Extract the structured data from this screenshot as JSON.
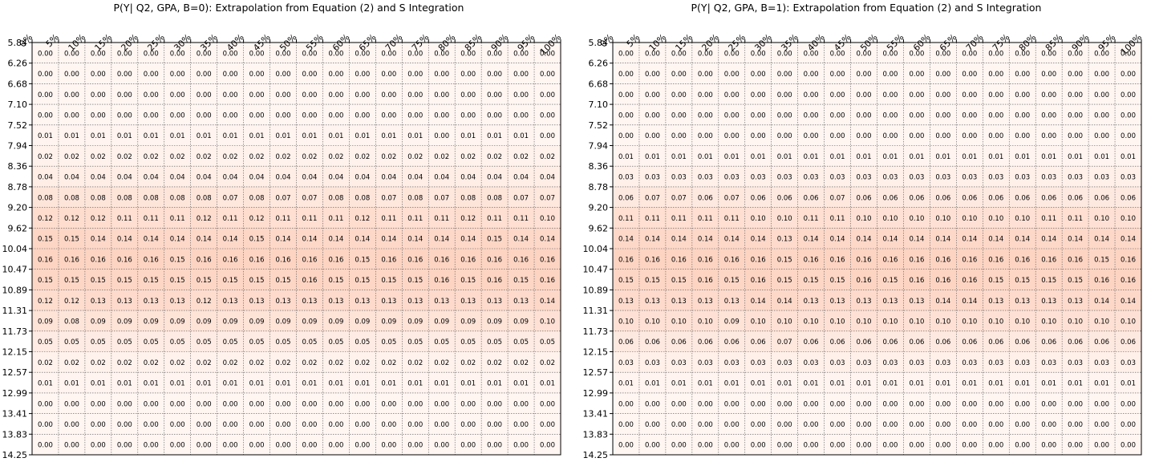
{
  "chart_data": [
    {
      "type": "heatmap",
      "title": "P(Y| Q2, GPA, B=0): Extrapolation from Equation (2) and S Integration",
      "x_labels": [
        "0%",
        "5%",
        "10%",
        "15%",
        "20%",
        "25%",
        "30%",
        "35%",
        "40%",
        "45%",
        "50%",
        "55%",
        "60%",
        "65%",
        "70%",
        "75%",
        "80%",
        "85%",
        "90%",
        "95%",
        "100%"
      ],
      "y_labels": [
        "5.84",
        "6.26",
        "6.68",
        "7.10",
        "7.52",
        "7.94",
        "8.36",
        "8.78",
        "9.20",
        "9.62",
        "10.04",
        "10.47",
        "10.89",
        "11.31",
        "11.73",
        "12.15",
        "12.57",
        "12.99",
        "13.41",
        "13.83",
        "14.25"
      ],
      "grid": true,
      "colormap": "white-to-salmon",
      "values": [
        [
          "0.00",
          "0.00",
          "0.00",
          "0.00",
          "0.00",
          "0.00",
          "0.00",
          "0.00",
          "0.00",
          "0.00",
          "0.00",
          "0.00",
          "0.00",
          "0.00",
          "0.00",
          "0.00",
          "0.00",
          "0.00",
          "0.00",
          "0.00"
        ],
        [
          "0.00",
          "0.00",
          "0.00",
          "0.00",
          "0.00",
          "0.00",
          "0.00",
          "0.00",
          "0.00",
          "0.00",
          "0.00",
          "0.00",
          "0.00",
          "0.00",
          "0.00",
          "0.00",
          "0.00",
          "0.00",
          "0.00",
          "0.00"
        ],
        [
          "0.00",
          "0.00",
          "0.00",
          "0.00",
          "0.00",
          "0.00",
          "0.00",
          "0.00",
          "0.00",
          "0.00",
          "0.00",
          "0.00",
          "0.00",
          "0.00",
          "0.00",
          "0.00",
          "0.00",
          "0.00",
          "0.00",
          "0.00"
        ],
        [
          "0.00",
          "0.00",
          "0.00",
          "0.00",
          "0.00",
          "0.00",
          "0.00",
          "0.00",
          "0.00",
          "0.00",
          "0.00",
          "0.00",
          "0.00",
          "0.00",
          "0.00",
          "0.00",
          "0.00",
          "0.00",
          "0.00",
          "0.00"
        ],
        [
          "0.01",
          "0.01",
          "0.01",
          "0.01",
          "0.01",
          "0.01",
          "0.01",
          "0.01",
          "0.01",
          "0.01",
          "0.01",
          "0.01",
          "0.01",
          "0.01",
          "0.01",
          "0.00",
          "0.01",
          "0.01",
          "0.01",
          "0.00"
        ],
        [
          "0.02",
          "0.02",
          "0.02",
          "0.02",
          "0.02",
          "0.02",
          "0.02",
          "0.02",
          "0.02",
          "0.02",
          "0.02",
          "0.02",
          "0.02",
          "0.02",
          "0.02",
          "0.02",
          "0.02",
          "0.02",
          "0.02",
          "0.02"
        ],
        [
          "0.04",
          "0.04",
          "0.04",
          "0.04",
          "0.04",
          "0.04",
          "0.04",
          "0.04",
          "0.04",
          "0.04",
          "0.04",
          "0.04",
          "0.04",
          "0.04",
          "0.04",
          "0.04",
          "0.04",
          "0.04",
          "0.04",
          "0.04"
        ],
        [
          "0.08",
          "0.08",
          "0.08",
          "0.08",
          "0.08",
          "0.08",
          "0.08",
          "0.07",
          "0.08",
          "0.07",
          "0.07",
          "0.08",
          "0.08",
          "0.07",
          "0.08",
          "0.07",
          "0.08",
          "0.08",
          "0.07",
          "0.07"
        ],
        [
          "0.12",
          "0.12",
          "0.12",
          "0.11",
          "0.11",
          "0.11",
          "0.12",
          "0.11",
          "0.12",
          "0.11",
          "0.11",
          "0.11",
          "0.12",
          "0.11",
          "0.11",
          "0.11",
          "0.12",
          "0.11",
          "0.11",
          "0.10"
        ],
        [
          "0.15",
          "0.15",
          "0.14",
          "0.14",
          "0.14",
          "0.14",
          "0.14",
          "0.14",
          "0.15",
          "0.14",
          "0.14",
          "0.14",
          "0.14",
          "0.14",
          "0.14",
          "0.14",
          "0.14",
          "0.15",
          "0.14",
          "0.14"
        ],
        [
          "0.16",
          "0.16",
          "0.16",
          "0.16",
          "0.16",
          "0.15",
          "0.16",
          "0.16",
          "0.16",
          "0.16",
          "0.16",
          "0.16",
          "0.15",
          "0.16",
          "0.16",
          "0.16",
          "0.16",
          "0.16",
          "0.16",
          "0.16"
        ],
        [
          "0.15",
          "0.15",
          "0.15",
          "0.15",
          "0.15",
          "0.15",
          "0.15",
          "0.15",
          "0.15",
          "0.15",
          "0.16",
          "0.15",
          "0.15",
          "0.15",
          "0.15",
          "0.16",
          "0.15",
          "0.16",
          "0.15",
          "0.16"
        ],
        [
          "0.12",
          "0.12",
          "0.13",
          "0.13",
          "0.13",
          "0.13",
          "0.12",
          "0.13",
          "0.13",
          "0.13",
          "0.13",
          "0.13",
          "0.13",
          "0.13",
          "0.13",
          "0.13",
          "0.13",
          "0.13",
          "0.13",
          "0.14"
        ],
        [
          "0.09",
          "0.08",
          "0.09",
          "0.09",
          "0.09",
          "0.09",
          "0.09",
          "0.09",
          "0.09",
          "0.09",
          "0.09",
          "0.09",
          "0.09",
          "0.09",
          "0.09",
          "0.09",
          "0.09",
          "0.09",
          "0.09",
          "0.10"
        ],
        [
          "0.05",
          "0.05",
          "0.05",
          "0.05",
          "0.05",
          "0.05",
          "0.05",
          "0.05",
          "0.05",
          "0.05",
          "0.05",
          "0.05",
          "0.05",
          "0.05",
          "0.05",
          "0.05",
          "0.05",
          "0.05",
          "0.05",
          "0.05"
        ],
        [
          "0.02",
          "0.02",
          "0.02",
          "0.02",
          "0.02",
          "0.02",
          "0.02",
          "0.02",
          "0.02",
          "0.02",
          "0.02",
          "0.02",
          "0.02",
          "0.02",
          "0.02",
          "0.02",
          "0.02",
          "0.02",
          "0.02",
          "0.02"
        ],
        [
          "0.01",
          "0.01",
          "0.01",
          "0.01",
          "0.01",
          "0.01",
          "0.01",
          "0.01",
          "0.01",
          "0.01",
          "0.01",
          "0.01",
          "0.01",
          "0.01",
          "0.01",
          "0.01",
          "0.01",
          "0.01",
          "0.01",
          "0.01"
        ],
        [
          "0.00",
          "0.00",
          "0.00",
          "0.00",
          "0.00",
          "0.00",
          "0.00",
          "0.00",
          "0.00",
          "0.00",
          "0.00",
          "0.00",
          "0.00",
          "0.00",
          "0.00",
          "0.00",
          "0.00",
          "0.00",
          "0.00",
          "0.00"
        ],
        [
          "0.00",
          "0.00",
          "0.00",
          "0.00",
          "0.00",
          "0.00",
          "0.00",
          "0.00",
          "0.00",
          "0.00",
          "0.00",
          "0.00",
          "0.00",
          "0.00",
          "0.00",
          "0.00",
          "0.00",
          "0.00",
          "0.00",
          "0.00"
        ],
        [
          "0.00",
          "0.00",
          "0.00",
          "0.00",
          "0.00",
          "0.00",
          "0.00",
          "0.00",
          "0.00",
          "0.00",
          "0.00",
          "0.00",
          "0.00",
          "0.00",
          "0.00",
          "0.00",
          "0.00",
          "0.00",
          "0.00",
          "0.00"
        ]
      ]
    },
    {
      "type": "heatmap",
      "title": "P(Y| Q2, GPA, B=1): Extrapolation from Equation (2) and S Integration",
      "x_labels": [
        "0%",
        "5%",
        "10%",
        "15%",
        "20%",
        "25%",
        "30%",
        "35%",
        "40%",
        "45%",
        "50%",
        "55%",
        "60%",
        "65%",
        "70%",
        "75%",
        "80%",
        "85%",
        "90%",
        "95%",
        "100%"
      ],
      "y_labels": [
        "5.84",
        "6.26",
        "6.68",
        "7.10",
        "7.52",
        "7.94",
        "8.36",
        "8.78",
        "9.20",
        "9.62",
        "10.04",
        "10.47",
        "10.89",
        "11.31",
        "11.73",
        "12.15",
        "12.57",
        "12.99",
        "13.41",
        "13.83",
        "14.25"
      ],
      "grid": true,
      "colormap": "white-to-salmon",
      "values": [
        [
          "0.00",
          "0.00",
          "0.00",
          "0.00",
          "0.00",
          "0.00",
          "0.00",
          "0.00",
          "0.00",
          "0.00",
          "0.00",
          "0.00",
          "0.00",
          "0.00",
          "0.00",
          "0.00",
          "0.00",
          "0.00",
          "0.00",
          "0.00"
        ],
        [
          "0.00",
          "0.00",
          "0.00",
          "0.00",
          "0.00",
          "0.00",
          "0.00",
          "0.00",
          "0.00",
          "0.00",
          "0.00",
          "0.00",
          "0.00",
          "0.00",
          "0.00",
          "0.00",
          "0.00",
          "0.00",
          "0.00",
          "0.00"
        ],
        [
          "0.00",
          "0.00",
          "0.00",
          "0.00",
          "0.00",
          "0.00",
          "0.00",
          "0.00",
          "0.00",
          "0.00",
          "0.00",
          "0.00",
          "0.00",
          "0.00",
          "0.00",
          "0.00",
          "0.00",
          "0.00",
          "0.00",
          "0.00"
        ],
        [
          "0.00",
          "0.00",
          "0.00",
          "0.00",
          "0.00",
          "0.00",
          "0.00",
          "0.00",
          "0.00",
          "0.00",
          "0.00",
          "0.00",
          "0.00",
          "0.00",
          "0.00",
          "0.00",
          "0.00",
          "0.00",
          "0.00",
          "0.00"
        ],
        [
          "0.00",
          "0.00",
          "0.00",
          "0.00",
          "0.00",
          "0.00",
          "0.00",
          "0.00",
          "0.00",
          "0.00",
          "0.00",
          "0.00",
          "0.00",
          "0.00",
          "0.00",
          "0.00",
          "0.00",
          "0.00",
          "0.00",
          "0.00"
        ],
        [
          "0.01",
          "0.01",
          "0.01",
          "0.01",
          "0.01",
          "0.01",
          "0.01",
          "0.01",
          "0.01",
          "0.01",
          "0.01",
          "0.01",
          "0.01",
          "0.01",
          "0.01",
          "0.01",
          "0.01",
          "0.01",
          "0.01",
          "0.01"
        ],
        [
          "0.03",
          "0.03",
          "0.03",
          "0.03",
          "0.03",
          "0.03",
          "0.03",
          "0.03",
          "0.03",
          "0.03",
          "0.03",
          "0.03",
          "0.03",
          "0.03",
          "0.03",
          "0.03",
          "0.03",
          "0.03",
          "0.03",
          "0.03"
        ],
        [
          "0.06",
          "0.07",
          "0.07",
          "0.06",
          "0.07",
          "0.06",
          "0.06",
          "0.06",
          "0.07",
          "0.06",
          "0.06",
          "0.06",
          "0.06",
          "0.06",
          "0.06",
          "0.06",
          "0.06",
          "0.06",
          "0.06",
          "0.06"
        ],
        [
          "0.11",
          "0.11",
          "0.11",
          "0.11",
          "0.11",
          "0.10",
          "0.10",
          "0.11",
          "0.11",
          "0.10",
          "0.10",
          "0.10",
          "0.10",
          "0.10",
          "0.10",
          "0.10",
          "0.11",
          "0.11",
          "0.10",
          "0.10"
        ],
        [
          "0.14",
          "0.14",
          "0.14",
          "0.14",
          "0.14",
          "0.14",
          "0.13",
          "0.14",
          "0.14",
          "0.14",
          "0.14",
          "0.14",
          "0.14",
          "0.14",
          "0.14",
          "0.14",
          "0.14",
          "0.14",
          "0.14",
          "0.14"
        ],
        [
          "0.16",
          "0.16",
          "0.16",
          "0.16",
          "0.16",
          "0.16",
          "0.15",
          "0.16",
          "0.16",
          "0.16",
          "0.16",
          "0.16",
          "0.16",
          "0.16",
          "0.16",
          "0.16",
          "0.16",
          "0.16",
          "0.15",
          "0.16"
        ],
        [
          "0.15",
          "0.15",
          "0.15",
          "0.16",
          "0.15",
          "0.16",
          "0.15",
          "0.15",
          "0.15",
          "0.16",
          "0.15",
          "0.16",
          "0.16",
          "0.16",
          "0.15",
          "0.15",
          "0.15",
          "0.15",
          "0.16",
          "0.16"
        ],
        [
          "0.13",
          "0.13",
          "0.13",
          "0.13",
          "0.13",
          "0.14",
          "0.14",
          "0.13",
          "0.13",
          "0.13",
          "0.13",
          "0.13",
          "0.14",
          "0.14",
          "0.13",
          "0.13",
          "0.13",
          "0.13",
          "0.14",
          "0.14"
        ],
        [
          "0.10",
          "0.10",
          "0.10",
          "0.10",
          "0.09",
          "0.10",
          "0.10",
          "0.10",
          "0.10",
          "0.10",
          "0.10",
          "0.10",
          "0.10",
          "0.10",
          "0.10",
          "0.10",
          "0.10",
          "0.10",
          "0.10",
          "0.10"
        ],
        [
          "0.06",
          "0.06",
          "0.06",
          "0.06",
          "0.06",
          "0.06",
          "0.07",
          "0.06",
          "0.06",
          "0.06",
          "0.06",
          "0.06",
          "0.06",
          "0.06",
          "0.06",
          "0.06",
          "0.06",
          "0.06",
          "0.06",
          "0.06"
        ],
        [
          "0.03",
          "0.03",
          "0.03",
          "0.03",
          "0.03",
          "0.03",
          "0.03",
          "0.03",
          "0.03",
          "0.03",
          "0.03",
          "0.03",
          "0.03",
          "0.03",
          "0.03",
          "0.03",
          "0.03",
          "0.03",
          "0.03",
          "0.03"
        ],
        [
          "0.01",
          "0.01",
          "0.01",
          "0.01",
          "0.01",
          "0.01",
          "0.01",
          "0.01",
          "0.01",
          "0.01",
          "0.01",
          "0.01",
          "0.01",
          "0.01",
          "0.01",
          "0.01",
          "0.01",
          "0.01",
          "0.01",
          "0.01"
        ],
        [
          "0.00",
          "0.00",
          "0.00",
          "0.00",
          "0.00",
          "0.00",
          "0.00",
          "0.00",
          "0.00",
          "0.00",
          "0.00",
          "0.00",
          "0.00",
          "0.00",
          "0.00",
          "0.00",
          "0.00",
          "0.00",
          "0.00",
          "0.00"
        ],
        [
          "0.00",
          "0.00",
          "0.00",
          "0.00",
          "0.00",
          "0.00",
          "0.00",
          "0.00",
          "0.00",
          "0.00",
          "0.00",
          "0.00",
          "0.00",
          "0.00",
          "0.00",
          "0.00",
          "0.00",
          "0.00",
          "0.00",
          "0.00"
        ],
        [
          "0.00",
          "0.00",
          "0.00",
          "0.00",
          "0.00",
          "0.00",
          "0.00",
          "0.00",
          "0.00",
          "0.00",
          "0.00",
          "0.00",
          "0.00",
          "0.00",
          "0.00",
          "0.00",
          "0.00",
          "0.00",
          "0.00",
          "0.00"
        ]
      ]
    }
  ]
}
